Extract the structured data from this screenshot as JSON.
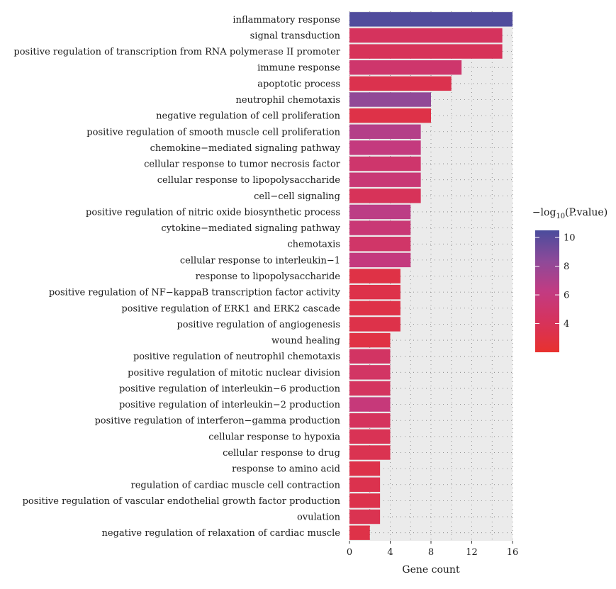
{
  "chart_data": {
    "type": "bar",
    "orientation": "horizontal",
    "xlabel": "Gene count",
    "xlim": [
      0,
      16
    ],
    "xticks": [
      0,
      4,
      8,
      12,
      16
    ],
    "grid": "dotted",
    "legend": {
      "title_prefix": "−log",
      "title_sub": "10",
      "title_suffix": "(P.value)",
      "placement": "right",
      "range": [
        2,
        10.5
      ],
      "ticks": [
        4,
        6,
        8,
        10
      ],
      "colors": [
        "#e8312e",
        "#d6335c",
        "#c23b82",
        "#8d4a99",
        "#4a4c9c"
      ]
    },
    "categories": [
      "inflammatory response",
      "signal transduction",
      "positive regulation of transcription from RNA polymerase II promoter",
      "immune response",
      "apoptotic process",
      "neutrophil chemotaxis",
      "negative regulation of cell proliferation",
      "positive regulation of smooth muscle cell proliferation",
      "chemokine−mediated signaling pathway",
      "cellular response to tumor necrosis factor",
      "cellular response to lipopolysaccharide",
      "cell−cell signaling",
      "positive regulation of nitric oxide biosynthetic process",
      "cytokine−mediated signaling pathway",
      "chemotaxis",
      "cellular response to interleukin−1",
      "response to lipopolysaccharide",
      "positive regulation of NF−kappaB transcription factor activity",
      "positive regulation of ERK1 and ERK2 cascade",
      "positive regulation of angiogenesis",
      "wound healing",
      "positive regulation of neutrophil chemotaxis",
      "positive regulation of mitotic nuclear division",
      "positive regulation of interleukin−6 production",
      "positive regulation of interleukin−2 production",
      "positive regulation of interferon−gamma production",
      "cellular response to hypoxia",
      "cellular response to drug",
      "response to amino acid",
      "regulation of cardiac muscle cell contraction",
      "positive regulation of vascular endothelial growth factor production",
      "ovulation",
      "negative regulation of relaxation of cardiac muscle"
    ],
    "values": [
      16,
      15,
      15,
      11,
      10,
      8,
      8,
      7,
      7,
      7,
      7,
      7,
      6,
      6,
      6,
      6,
      5,
      5,
      5,
      5,
      4,
      4,
      4,
      4,
      4,
      4,
      4,
      4,
      3,
      3,
      3,
      3,
      2
    ],
    "neg_log10_p": [
      10.3,
      4.2,
      4.0,
      5.0,
      3.5,
      8.2,
      3.2,
      6.8,
      6.0,
      5.0,
      5.5,
      4.0,
      6.5,
      5.5,
      4.8,
      6.0,
      3.1,
      3.3,
      3.2,
      3.3,
      3.0,
      4.5,
      4.6,
      4.3,
      5.8,
      4.2,
      3.8,
      3.6,
      3.3,
      3.5,
      3.4,
      3.6,
      3.2
    ]
  }
}
